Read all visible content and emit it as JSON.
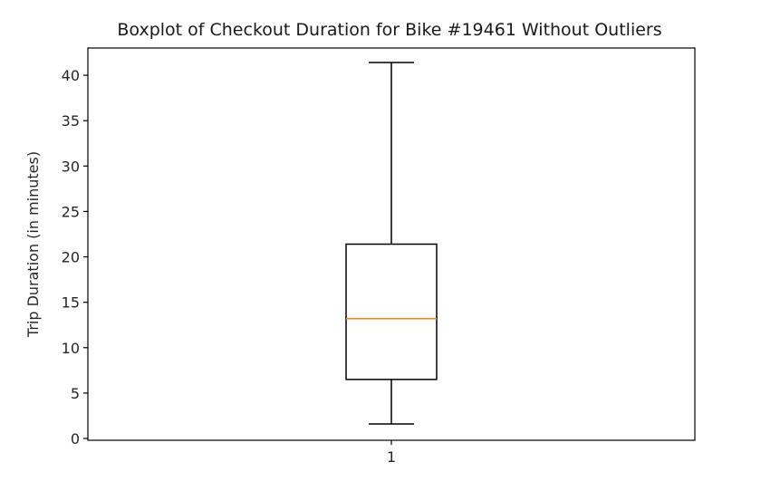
{
  "chart_data": {
    "type": "boxplot",
    "title": "Boxplot of Checkout Duration for Bike #19461 Without Outliers",
    "xlabel": "",
    "ylabel": "Trip Duration (in minutes)",
    "ylim": [
      -0.2,
      43.0
    ],
    "yticks": [
      0,
      5,
      10,
      15,
      20,
      25,
      30,
      35,
      40
    ],
    "categories": [
      "1"
    ],
    "boxes": [
      {
        "category": "1",
        "whisker_low": 1.6,
        "q1": 6.5,
        "median": 13.2,
        "q3": 21.4,
        "whisker_high": 41.4
      }
    ],
    "colors": {
      "box": "#000000",
      "median": "#ff7f0e",
      "whisker": "#000000",
      "frame": "#000000"
    },
    "grid": false
  }
}
